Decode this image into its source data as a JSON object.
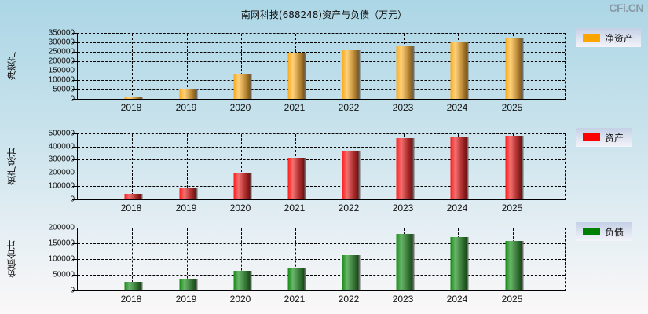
{
  "title": "南网科技(688248)资产与负债（万元）",
  "watermark": "CFi.CN",
  "chart_data": [
    {
      "type": "bar",
      "title": "南网科技(688248)资产与负债（万元）",
      "ylabel": "净资产",
      "legend": "净资产",
      "color": "#ffa500",
      "categories": [
        "2018",
        "2019",
        "2020",
        "2021",
        "2022",
        "2023",
        "2024",
        "2025"
      ],
      "values": [
        13000,
        51000,
        135000,
        243000,
        260000,
        280000,
        301000,
        322000
      ],
      "yticks": [
        "350000",
        "300000",
        "250000",
        "200000",
        "150000",
        "100000",
        "50000",
        "0"
      ],
      "ylim": [
        0,
        350000
      ],
      "grid": true,
      "legend_position": "right"
    },
    {
      "type": "bar",
      "ylabel": "资产总计",
      "legend": "资产",
      "color": "#ff0000",
      "categories": [
        "2018",
        "2019",
        "2020",
        "2021",
        "2022",
        "2023",
        "2024",
        "2025"
      ],
      "values": [
        43000,
        91000,
        198000,
        317000,
        371000,
        466000,
        472000,
        484000
      ],
      "yticks": [
        "500000",
        "400000",
        "300000",
        "200000",
        "100000",
        "0"
      ],
      "ylim": [
        0,
        500000
      ],
      "grid": true,
      "legend_position": "right"
    },
    {
      "type": "bar",
      "ylabel": "负债合计",
      "legend": "负债",
      "color": "#008000",
      "categories": [
        "2018",
        "2019",
        "2020",
        "2021",
        "2022",
        "2023",
        "2024",
        "2025"
      ],
      "values": [
        28000,
        38000,
        63000,
        73000,
        113000,
        181000,
        171000,
        158000
      ],
      "yticks": [
        "200000",
        "150000",
        "100000",
        "50000",
        "0"
      ],
      "ylim": [
        0,
        200000
      ],
      "grid": true,
      "legend_position": "right"
    }
  ]
}
